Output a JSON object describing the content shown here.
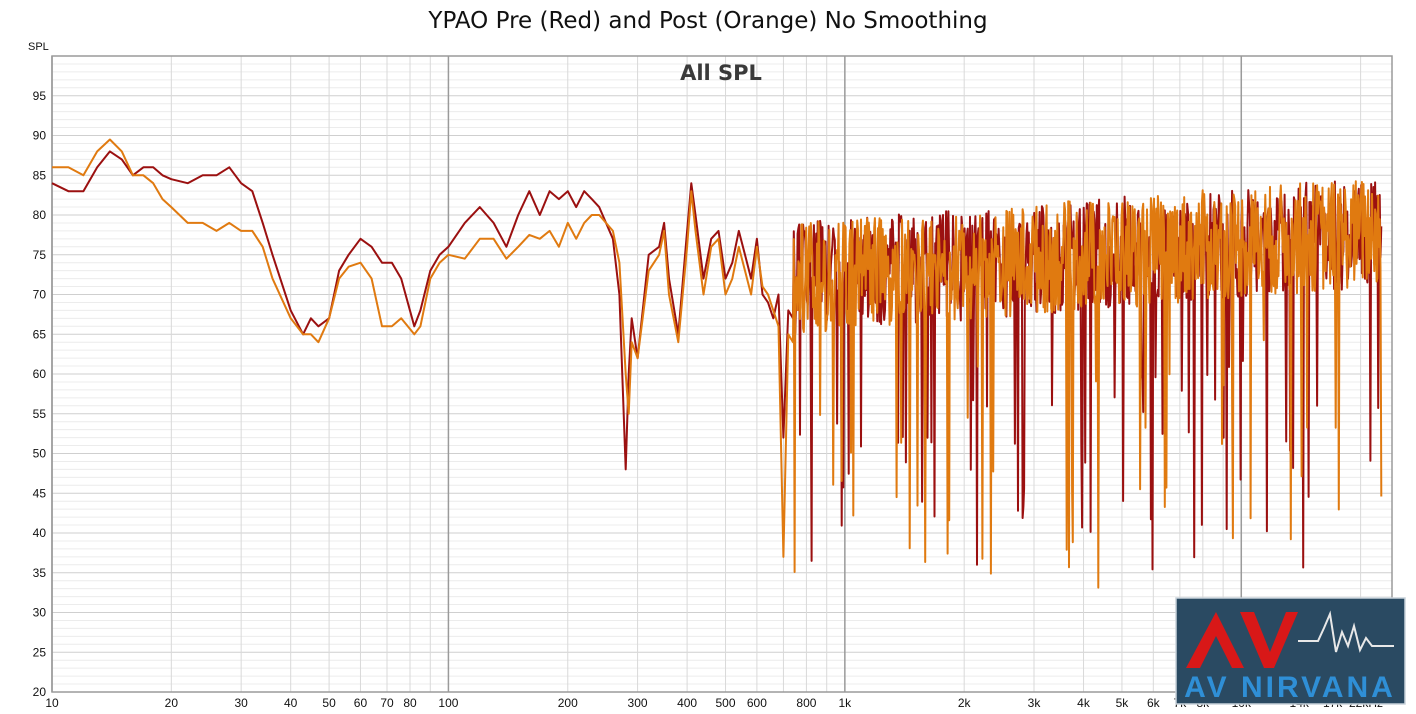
{
  "chart_data": {
    "type": "line",
    "title": "YPAO Pre (Red) and Post (Orange) No Smoothing",
    "subtitle": "All SPL",
    "ylabel": "SPL",
    "xlabel": "",
    "x_scale": "log",
    "xlim": [
      10,
      24000
    ],
    "ylim": [
      20,
      100
    ],
    "grid": true,
    "y_ticks": [
      20,
      25,
      30,
      35,
      40,
      45,
      50,
      55,
      60,
      65,
      70,
      75,
      80,
      85,
      90,
      95
    ],
    "x_ticks": [
      {
        "v": 10,
        "l": "10"
      },
      {
        "v": 20,
        "l": "20"
      },
      {
        "v": 30,
        "l": "30"
      },
      {
        "v": 40,
        "l": "40"
      },
      {
        "v": 50,
        "l": "50"
      },
      {
        "v": 60,
        "l": "60"
      },
      {
        "v": 70,
        "l": "70"
      },
      {
        "v": 80,
        "l": "80"
      },
      {
        "v": 100,
        "l": "100"
      },
      {
        "v": 200,
        "l": "200"
      },
      {
        "v": 300,
        "l": "300"
      },
      {
        "v": 400,
        "l": "400"
      },
      {
        "v": 500,
        "l": "500"
      },
      {
        "v": 600,
        "l": "600"
      },
      {
        "v": 800,
        "l": "800"
      },
      {
        "v": 1000,
        "l": "1k"
      },
      {
        "v": 2000,
        "l": "2k"
      },
      {
        "v": 3000,
        "l": "3k"
      },
      {
        "v": 4000,
        "l": "4k"
      },
      {
        "v": 5000,
        "l": "5k"
      },
      {
        "v": 6000,
        "l": "6k"
      },
      {
        "v": 7000,
        "l": "7k"
      },
      {
        "v": 8000,
        "l": "8k"
      },
      {
        "v": 10000,
        "l": "10k"
      },
      {
        "v": 14000,
        "l": "14k"
      },
      {
        "v": 17000,
        "l": "17k"
      },
      {
        "v": 22000,
        "l": "22kHz"
      }
    ],
    "series": [
      {
        "color": "#9b1010",
        "x": [
          10,
          11,
          12,
          13,
          14,
          15,
          16,
          17,
          18,
          19,
          20,
          22,
          24,
          26,
          28,
          30,
          32,
          34,
          36,
          40,
          43,
          45,
          47,
          50,
          53,
          56,
          60,
          64,
          68,
          72,
          76,
          82,
          85,
          90,
          95,
          100,
          110,
          120,
          130,
          140,
          150,
          160,
          170,
          180,
          190,
          200,
          210,
          220,
          230,
          240,
          260,
          270,
          280,
          285,
          290,
          300,
          320,
          340,
          350,
          360,
          380,
          400,
          410,
          420,
          440,
          460,
          480,
          500,
          520,
          540,
          560,
          580,
          600,
          620,
          640,
          660,
          680,
          700,
          720,
          740
        ],
        "y": [
          84,
          83,
          83,
          86,
          88,
          87,
          85,
          86,
          86,
          85,
          84.5,
          84,
          85,
          85,
          86,
          84,
          83,
          79,
          75,
          68,
          65,
          67,
          66,
          67,
          73,
          75,
          77,
          76,
          74,
          74,
          72,
          66,
          68,
          73,
          75,
          76,
          79,
          81,
          79,
          76,
          80,
          83,
          80,
          83,
          82,
          83,
          81,
          83,
          82,
          81,
          77,
          70,
          48,
          60,
          67,
          62,
          75,
          76,
          79,
          72,
          65,
          78,
          84,
          80,
          72,
          77,
          78,
          72,
          74,
          78,
          75,
          72,
          77,
          70,
          69,
          67,
          70,
          52,
          68,
          67
        ]
      },
      {
        "color": "#e07a10",
        "x": [
          10,
          11,
          12,
          13,
          14,
          15,
          16,
          17,
          18,
          19,
          20,
          22,
          24,
          26,
          28,
          30,
          32,
          34,
          36,
          40,
          43,
          45,
          47,
          50,
          53,
          56,
          60,
          64,
          68,
          72,
          76,
          82,
          85,
          90,
          95,
          100,
          110,
          120,
          130,
          140,
          150,
          160,
          170,
          180,
          190,
          200,
          210,
          220,
          230,
          240,
          260,
          270,
          280,
          285,
          290,
          300,
          320,
          340,
          350,
          360,
          380,
          400,
          410,
          420,
          440,
          460,
          480,
          500,
          520,
          540,
          560,
          580,
          600,
          620,
          640,
          660,
          680,
          700,
          720,
          740
        ],
        "y": [
          86,
          86,
          85,
          88,
          89.5,
          88,
          85,
          85,
          84,
          82,
          81,
          79,
          79,
          78,
          79,
          78,
          78,
          76,
          72,
          67,
          65,
          65,
          64,
          67,
          72,
          73.5,
          74,
          72,
          66,
          66,
          67,
          65,
          66,
          72,
          74,
          75,
          74.5,
          77,
          77,
          74.5,
          76,
          77.5,
          77,
          78,
          76,
          79,
          77,
          79,
          80,
          80,
          78,
          74,
          60,
          55,
          64,
          62,
          73,
          75,
          78,
          70,
          64,
          76,
          83,
          78,
          70,
          76,
          77,
          70,
          72,
          76,
          73,
          70,
          76,
          71,
          70,
          68,
          66,
          37,
          65,
          64
        ]
      }
    ],
    "annotations": [
      "AV NIRVANA"
    ]
  }
}
